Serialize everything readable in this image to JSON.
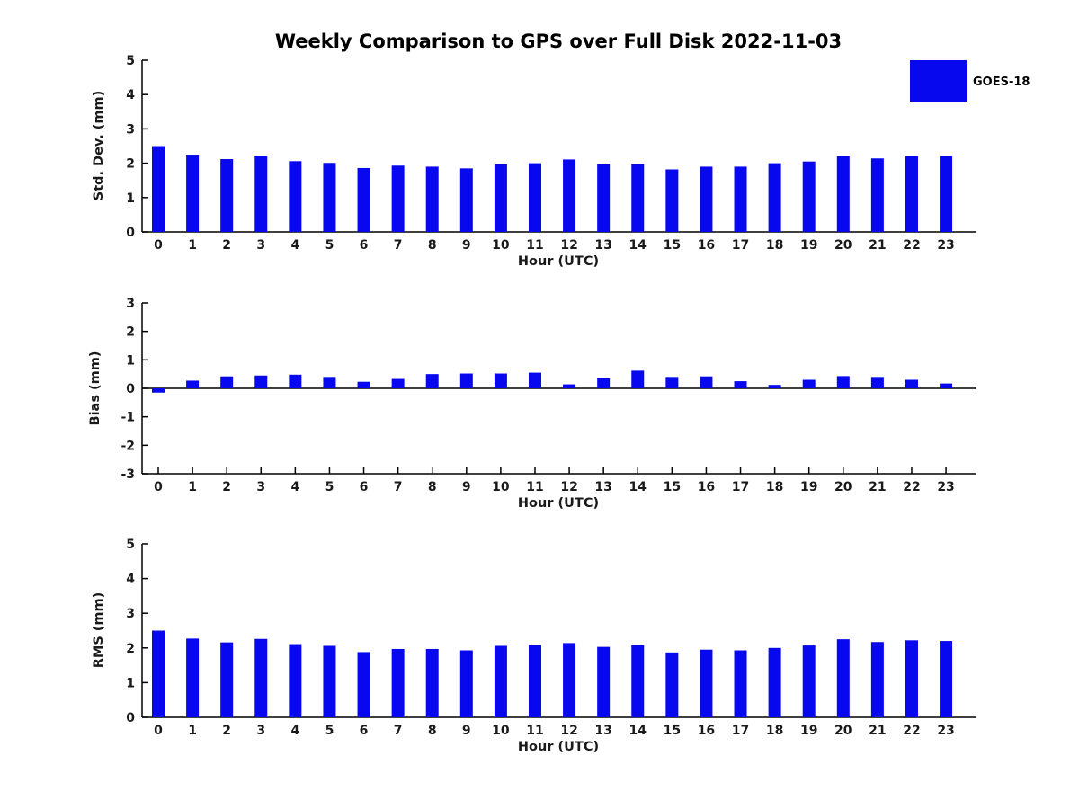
{
  "title": "Weekly Comparison to GPS over Full Disk 2022-11-03",
  "legend": {
    "label": "GOES-18",
    "color": "#0808ee",
    "position": "top-right"
  },
  "chart_data": [
    {
      "type": "bar",
      "name": "std-dev",
      "series_name": "GOES-18",
      "color": "#0808ee",
      "ylabel": "Std. Dev. (mm)",
      "xlabel": "Hour (UTC)",
      "ylim": [
        0,
        5
      ],
      "yticks": [
        0,
        1,
        2,
        3,
        4,
        5
      ],
      "grid": false,
      "legend_position": "top-right",
      "categories": [
        "0",
        "1",
        "2",
        "3",
        "4",
        "5",
        "6",
        "7",
        "8",
        "9",
        "10",
        "11",
        "12",
        "13",
        "14",
        "15",
        "16",
        "17",
        "18",
        "19",
        "20",
        "21",
        "22",
        "23"
      ],
      "values": [
        2.5,
        2.25,
        2.12,
        2.22,
        2.06,
        2.01,
        1.86,
        1.93,
        1.9,
        1.85,
        1.97,
        2.0,
        2.11,
        1.97,
        1.97,
        1.82,
        1.9,
        1.9,
        2.0,
        2.05,
        2.21,
        2.14,
        2.21,
        2.21
      ]
    },
    {
      "type": "bar",
      "name": "bias",
      "series_name": "GOES-18",
      "color": "#0808ee",
      "ylabel": "Bias (mm)",
      "xlabel": "Hour (UTC)",
      "ylim": [
        -3,
        3
      ],
      "yticks": [
        -3,
        -2,
        -1,
        0,
        1,
        2,
        3
      ],
      "grid": false,
      "categories": [
        "0",
        "1",
        "2",
        "3",
        "4",
        "5",
        "6",
        "7",
        "8",
        "9",
        "10",
        "11",
        "12",
        "13",
        "14",
        "15",
        "16",
        "17",
        "18",
        "19",
        "20",
        "21",
        "22",
        "23"
      ],
      "values": [
        -0.15,
        0.27,
        0.42,
        0.45,
        0.48,
        0.4,
        0.23,
        0.33,
        0.5,
        0.52,
        0.52,
        0.55,
        0.14,
        0.35,
        0.62,
        0.4,
        0.42,
        0.25,
        0.12,
        0.3,
        0.43,
        0.4,
        0.3,
        0.17
      ]
    },
    {
      "type": "bar",
      "name": "rms",
      "series_name": "GOES-18",
      "color": "#0808ee",
      "ylabel": "RMS (mm)",
      "xlabel": "Hour (UTC)",
      "ylim": [
        0,
        5
      ],
      "yticks": [
        0,
        1,
        2,
        3,
        4,
        5
      ],
      "grid": false,
      "categories": [
        "0",
        "1",
        "2",
        "3",
        "4",
        "5",
        "6",
        "7",
        "8",
        "9",
        "10",
        "11",
        "12",
        "13",
        "14",
        "15",
        "16",
        "17",
        "18",
        "19",
        "20",
        "21",
        "22",
        "23"
      ],
      "values": [
        2.5,
        2.27,
        2.16,
        2.26,
        2.11,
        2.06,
        1.88,
        1.97,
        1.97,
        1.93,
        2.06,
        2.08,
        2.14,
        2.03,
        2.08,
        1.87,
        1.95,
        1.93,
        2.0,
        2.07,
        2.25,
        2.17,
        2.22,
        2.2
      ]
    }
  ]
}
